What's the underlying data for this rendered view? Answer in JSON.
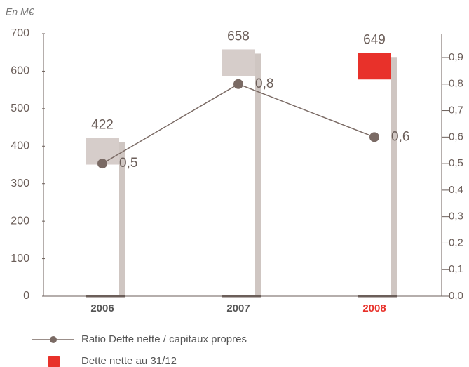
{
  "chart_data": {
    "type": "combo",
    "unit_label": "En M€",
    "categories": [
      "2006",
      "2007",
      "2008"
    ],
    "category_colors": [
      "#555555",
      "#555555",
      "#e8312a"
    ],
    "ylim": [
      0,
      700
    ],
    "yticks": [
      0,
      100,
      200,
      300,
      400,
      500,
      600,
      700
    ],
    "y2lim": [
      0,
      0.99
    ],
    "y2ticks": [
      {
        "value": 0,
        "label": "0,0"
      },
      {
        "value": 0.1,
        "label": "0,1"
      },
      {
        "value": 0.2,
        "label": "0,2"
      },
      {
        "value": 0.3,
        "label": "0,3"
      },
      {
        "value": 0.4,
        "label": "0,4"
      },
      {
        "value": 0.5,
        "label": "0,5"
      },
      {
        "value": 0.6,
        "label": "0,6"
      },
      {
        "value": 0.7,
        "label": "0,7"
      },
      {
        "value": 0.8,
        "label": "0,8"
      },
      {
        "value": 0.9,
        "label": "0,9"
      }
    ],
    "series": [
      {
        "name": "Dette nette au 31/12",
        "type": "bar",
        "axis": "y",
        "colors": [
          "#d6cdca",
          "#d6cdca",
          "#e8312a"
        ],
        "color": "#e8312a",
        "values": [
          422,
          658,
          649
        ]
      },
      {
        "name": "Ratio Dette nette / capitaux propres",
        "type": "line",
        "axis": "y2",
        "color": "#7a6a64",
        "values": [
          0.5,
          0.8,
          0.6
        ],
        "value_labels": [
          "0,5",
          "0,8",
          "0,6"
        ]
      }
    ]
  }
}
